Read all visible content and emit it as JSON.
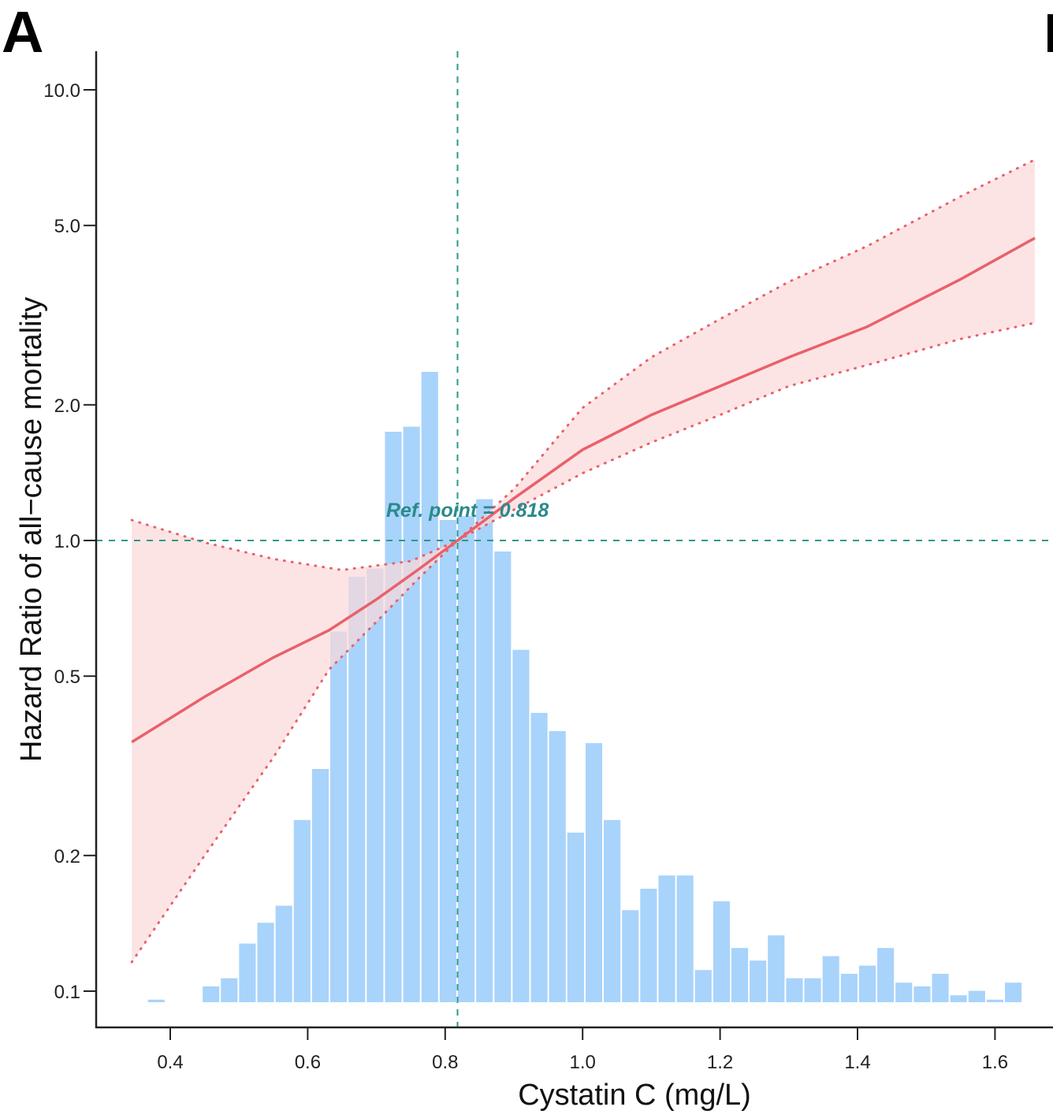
{
  "panel_label": "A",
  "chart_data": {
    "type": "line",
    "title": "",
    "xlabel": "Cystatin C (mg/L)",
    "ylabel": "Hazard Ratio of all−cause mortality",
    "xlim": [
      0.29,
      1.69
    ],
    "ylim": [
      0.075,
      13
    ],
    "yscale": "log",
    "x_ticks": [
      0.4,
      0.6,
      0.8,
      1.0,
      1.2,
      1.4,
      1.6
    ],
    "x_tick_labels": [
      "0.4",
      "0.6",
      "0.8",
      "1.0",
      "1.2",
      "1.4",
      "1.6"
    ],
    "y_ticks": [
      0.1,
      0.2,
      0.5,
      1.0,
      2.0,
      5.0,
      10.0
    ],
    "y_tick_labels": [
      "0.1",
      "0.2",
      "0.5",
      "1.0",
      "2.0",
      "5.0",
      "10.0"
    ],
    "grid": false,
    "reference": {
      "x": 0.818,
      "y": 1.0,
      "label": "Ref. point = 0.818"
    },
    "series": [
      {
        "name": "Hazard ratio",
        "x": [
          0.344,
          0.45,
          0.55,
          0.631,
          0.7,
          0.76,
          0.818,
          0.9,
          1.0,
          1.1,
          1.2,
          1.3,
          1.414,
          1.55,
          1.658
        ],
        "y": [
          0.357,
          0.45,
          0.55,
          0.632,
          0.74,
          0.86,
          1.0,
          1.24,
          1.59,
          1.9,
          2.2,
          2.55,
          2.98,
          3.8,
          4.69
        ]
      }
    ],
    "ci_upper": {
      "x": [
        0.344,
        0.45,
        0.55,
        0.65,
        0.75,
        0.818,
        0.9,
        1.0,
        1.1,
        1.2,
        1.3,
        1.414,
        1.55,
        1.658
      ],
      "y": [
        1.11,
        0.99,
        0.91,
        0.86,
        0.9,
        1.0,
        1.3,
        1.97,
        2.55,
        3.1,
        3.75,
        4.5,
        5.8,
        7.0
      ]
    },
    "ci_lower": {
      "x": [
        0.344,
        0.45,
        0.55,
        0.631,
        0.7,
        0.76,
        0.818,
        0.9,
        1.0,
        1.1,
        1.2,
        1.3,
        1.414,
        1.55,
        1.658
      ],
      "y": [
        0.116,
        0.2,
        0.33,
        0.517,
        0.66,
        0.82,
        1.0,
        1.17,
        1.41,
        1.65,
        1.9,
        2.2,
        2.45,
        2.8,
        3.04
      ]
    },
    "histogram": {
      "bin_start": 0.3664,
      "bin_width": 0.02653,
      "relative_frequency": [
        0.4,
        0,
        0,
        2.5,
        3.8,
        9.3,
        12.6,
        15.3,
        28.9,
        37.0,
        58.8,
        67.5,
        68.8,
        90.5,
        91.3,
        100,
        76.5,
        77.1,
        79.8,
        71.5,
        55.9,
        45.9,
        43.0,
        26.9,
        41.1,
        28.9,
        14.6,
        18.0,
        20.1,
        20.1,
        5.1,
        16.0,
        8.6,
        6.6,
        10.6,
        3.8,
        3.8,
        7.3,
        4.5,
        5.8,
        8.6,
        3.1,
        2.5,
        4.5,
        1.1,
        1.8,
        0.4,
        3.1
      ]
    },
    "colors": {
      "line": "#e8616b",
      "ribbon": "#fcd9d9",
      "histogram": "#a8d3fb",
      "reference": "#2a9a8a",
      "ref_text": "#2a8a8c"
    }
  }
}
